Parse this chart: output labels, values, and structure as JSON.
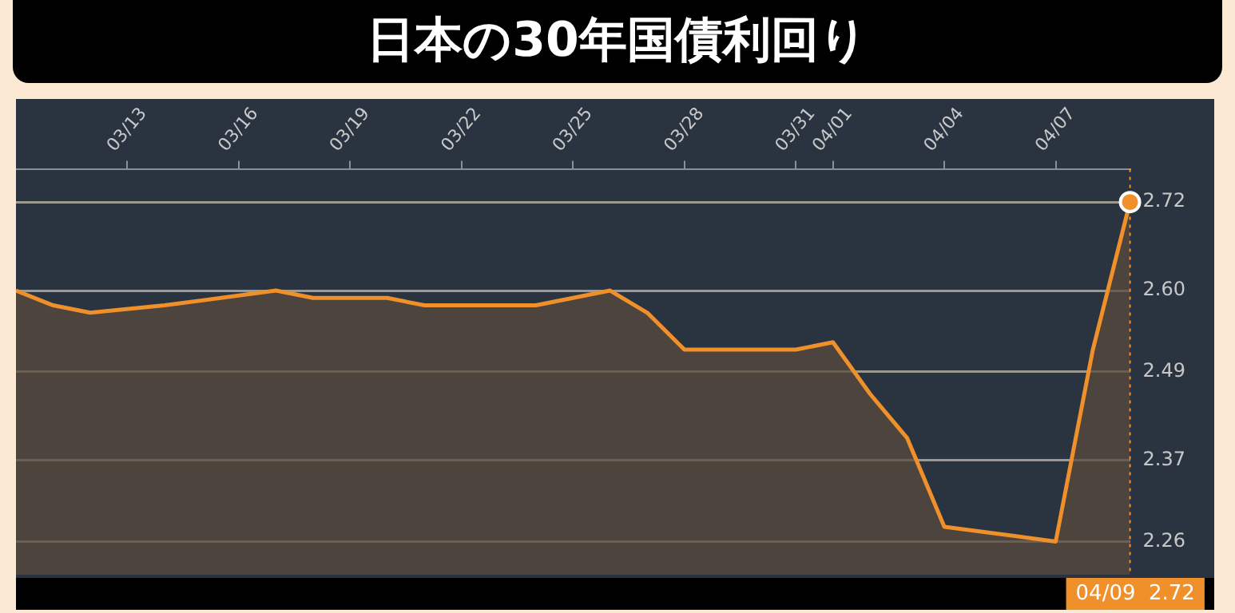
{
  "chart_data": {
    "type": "area",
    "title": "日本の30年国債利回り",
    "x": [
      "--03-10",
      "--03-11",
      "--03-12",
      "--03-14",
      "--03-17",
      "--03-18",
      "--03-19",
      "--03-20",
      "--03-21",
      "--03-24",
      "--03-25",
      "--03-26",
      "--03-27",
      "--03-28",
      "--03-31",
      "--04-01",
      "--04-02",
      "--04-03",
      "--04-04",
      "--04-07",
      "--04-08",
      "--04-09"
    ],
    "series": [
      {
        "color": "#f0902a",
        "values": [
          2.6,
          2.58,
          2.57,
          2.58,
          2.6,
          2.59,
          2.59,
          2.59,
          2.58,
          2.58,
          2.59,
          2.6,
          2.57,
          2.52,
          2.52,
          2.53,
          2.46,
          2.4,
          2.28,
          2.26,
          2.52,
          2.72
        ]
      }
    ],
    "xlim": [
      "--03-10",
      "--04-09"
    ],
    "xticks": [
      {
        "value": "--03-13",
        "label": "03/13"
      },
      {
        "value": "--03-16",
        "label": "03/16"
      },
      {
        "value": "--03-19",
        "label": "03/19"
      },
      {
        "value": "--03-22",
        "label": "03/22"
      },
      {
        "value": "--03-25",
        "label": "03/25"
      },
      {
        "value": "--03-28",
        "label": "03/28"
      },
      {
        "value": "--03-31",
        "label": "03/31"
      },
      {
        "value": "--04-01",
        "label": "04/01"
      },
      {
        "value": "--04-04",
        "label": "04/04"
      },
      {
        "value": "--04-07",
        "label": "04/07"
      }
    ],
    "ylim": [
      2.215,
      2.765
    ],
    "yticks": [
      2.26,
      2.37,
      2.49,
      {
        "value": 2.6,
        "label": "2.60"
      },
      2.72
    ],
    "grid": "y",
    "legend": false,
    "marker": "none",
    "line_style": "solid",
    "ref_lines": [
      {
        "axis": "x",
        "value": "--04-09",
        "label": null,
        "line_style": "dotted",
        "color": "#f0902a"
      }
    ],
    "annotations": [
      "04/09  2.72"
    ]
  }
}
